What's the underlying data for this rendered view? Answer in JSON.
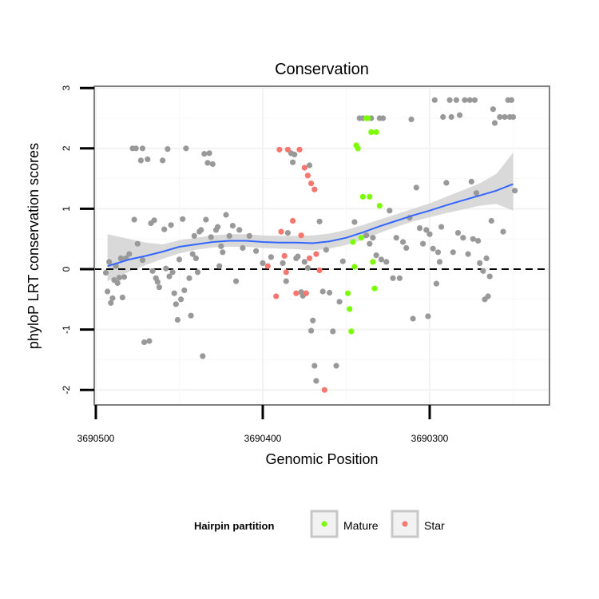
{
  "chart_data": {
    "type": "scatter",
    "title": "Conservation",
    "xlabel": "Genomic Position",
    "ylabel": "phyloP LRT conservation scores",
    "xlim": [
      3690500,
      3690227
    ],
    "x_reversed": true,
    "ylim": [
      -2.25,
      3.05
    ],
    "x_ticks": [
      3690500,
      3690400,
      3690300
    ],
    "x_tick_labels": [
      "3690500",
      "3690400",
      "3690300"
    ],
    "y_ticks": [
      -2,
      -1,
      0,
      1,
      2,
      3
    ],
    "y_tick_labels": [
      "-2",
      "-1",
      "0",
      "1",
      "2",
      "3"
    ],
    "reference_line": {
      "y": 0,
      "style": "dashed",
      "color": "#000000"
    },
    "legend": {
      "title": "Hairpin partition",
      "position": "bottom",
      "entries": [
        {
          "label": "Mature",
          "color": "#7cfc00"
        },
        {
          "label": "Star",
          "color": "#f8766d"
        }
      ]
    },
    "colors": {
      "other": "#999999",
      "Mature": "#7cfc00",
      "Star": "#f8766d",
      "smooth": "#3366ff",
      "ribbon": "#cccccc"
    },
    "series": [
      {
        "name": "Other",
        "points": [
          [
            3690494,
            -0.06
          ],
          [
            3690493,
            -0.37
          ],
          [
            3690492,
            0.12
          ],
          [
            3690491,
            -0.56
          ],
          [
            3690490,
            -0.48
          ],
          [
            3690489,
            -0.18
          ],
          [
            3690488,
            0.05
          ],
          [
            3690487,
            -0.23
          ],
          [
            3690486,
            -0.14
          ],
          [
            3690485,
            0.18
          ],
          [
            3690484,
            -0.47
          ],
          [
            3690483,
            -0.13
          ],
          [
            3690482,
            0.18
          ],
          [
            3690480,
            0.25
          ],
          [
            3690478,
            2.0
          ],
          [
            3690477,
            0.82
          ],
          [
            3690476,
            2.0
          ],
          [
            3690475,
            0.42
          ],
          [
            3690473,
            1.8
          ],
          [
            3690472,
            0.15
          ],
          [
            3690472,
            2.0
          ],
          [
            3690471,
            -1.21
          ],
          [
            3690469,
            1.82
          ],
          [
            3690468,
            -1.19
          ],
          [
            3690467,
            0.76
          ],
          [
            3690466,
            -0.03
          ],
          [
            3690465,
            0.81
          ],
          [
            3690464,
            -0.15
          ],
          [
            3690463,
            -0.21
          ],
          [
            3690462,
            -0.3
          ],
          [
            3690460,
            1.8
          ],
          [
            3690459,
            0.66
          ],
          [
            3690458,
            0.01
          ],
          [
            3690457,
            1.99
          ],
          [
            3690456,
            -0.12
          ],
          [
            3690455,
            0.73
          ],
          [
            3690454,
            -0.05
          ],
          [
            3690453,
            -0.4
          ],
          [
            3690452,
            -0.58
          ],
          [
            3690451,
            -0.84
          ],
          [
            3690450,
            0.16
          ],
          [
            3690449,
            -0.5
          ],
          [
            3690448,
            0.83
          ],
          [
            3690447,
            -0.35
          ],
          [
            3690446,
            2.0
          ],
          [
            3690444,
            -0.15
          ],
          [
            3690443,
            -0.77
          ],
          [
            3690442,
            0.25
          ],
          [
            3690441,
            0.55
          ],
          [
            3690440,
            0.18
          ],
          [
            3690439,
            -0.05
          ],
          [
            3690438,
            0.62
          ],
          [
            3690437,
            0.65
          ],
          [
            3690436,
            -1.44
          ],
          [
            3690435,
            1.91
          ],
          [
            3690434,
            0.82
          ],
          [
            3690433,
            1.76
          ],
          [
            3690432,
            1.92
          ],
          [
            3690431,
            0.53
          ],
          [
            3690430,
            1.74
          ],
          [
            3690428,
            0.65
          ],
          [
            3690427,
            0.7
          ],
          [
            3690426,
            0.05
          ],
          [
            3690425,
            0.38
          ],
          [
            3690424,
            0.28
          ],
          [
            3690422,
            0.9
          ],
          [
            3690420,
            0.55
          ],
          [
            3690418,
            0.72
          ],
          [
            3690416,
            -0.2
          ],
          [
            3690414,
            0.65
          ],
          [
            3690412,
            0.35
          ],
          [
            3690408,
            0.55
          ],
          [
            3690404,
            0.3
          ],
          [
            3690400,
            0.1
          ],
          [
            3690395,
            0.2
          ],
          [
            3690388,
            0.1
          ],
          [
            3690386,
            -0.2
          ],
          [
            3690385,
            0.6
          ],
          [
            3690383,
            1.92
          ],
          [
            3690382,
            1.77
          ],
          [
            3690381,
            1.9
          ],
          [
            3690380,
            0.18
          ],
          [
            3690379,
            0.21
          ],
          [
            3690377,
            -0.38
          ],
          [
            3690376,
            -0.44
          ],
          [
            3690375,
            0.12
          ],
          [
            3690373,
            0.02
          ],
          [
            3690372,
            1.72
          ],
          [
            3690371,
            -1.02
          ],
          [
            3690370,
            -0.85
          ],
          [
            3690369,
            -1.6
          ],
          [
            3690368,
            -1.85
          ],
          [
            3690366,
            0.79
          ],
          [
            3690364,
            -0.37
          ],
          [
            3690362,
            0.32
          ],
          [
            3690360,
            -0.39
          ],
          [
            3690358,
            -1.03
          ],
          [
            3690356,
            -1.6
          ],
          [
            3690354,
            -0.54
          ],
          [
            3690352,
            0.13
          ],
          [
            3690345,
            0.78
          ],
          [
            3690342,
            2.5
          ],
          [
            3690340,
            2.5
          ],
          [
            3690338,
            0.56
          ],
          [
            3690336,
            0.42
          ],
          [
            3690335,
            2.5
          ],
          [
            3690334,
            0.52
          ],
          [
            3690332,
            0.23
          ],
          [
            3690330,
            2.5
          ],
          [
            3690329,
            0.16
          ],
          [
            3690328,
            2.5
          ],
          [
            3690326,
            0.12
          ],
          [
            3690324,
            0.97
          ],
          [
            3690322,
            -0.15
          ],
          [
            3690320,
            0.52
          ],
          [
            3690318,
            -0.15
          ],
          [
            3690316,
            0.45
          ],
          [
            3690314,
            0.35
          ],
          [
            3690312,
            0.85
          ],
          [
            3690311,
            2.48
          ],
          [
            3690310,
            -0.82
          ],
          [
            3690308,
            1.35
          ],
          [
            3690306,
            0.68
          ],
          [
            3690304,
            0.42
          ],
          [
            3690302,
            0.65
          ],
          [
            3690301,
            -0.78
          ],
          [
            3690300,
            0.58
          ],
          [
            3690298,
            0.34
          ],
          [
            3690297,
            2.8
          ],
          [
            3690296,
            -0.24
          ],
          [
            3690295,
            0.28
          ],
          [
            3690294,
            0.12
          ],
          [
            3690293,
            0.7
          ],
          [
            3690292,
            2.52
          ],
          [
            3690290,
            1.43
          ],
          [
            3690288,
            2.8
          ],
          [
            3690287,
            2.52
          ],
          [
            3690286,
            0.28
          ],
          [
            3690284,
            2.8
          ],
          [
            3690283,
            0.6
          ],
          [
            3690282,
            2.55
          ],
          [
            3690280,
            0.52
          ],
          [
            3690279,
            2.8
          ],
          [
            3690277,
            0.25
          ],
          [
            3690276,
            2.8
          ],
          [
            3690275,
            1.45
          ],
          [
            3690274,
            0.5
          ],
          [
            3690273,
            2.8
          ],
          [
            3690272,
            1.26
          ],
          [
            3690271,
            0.47
          ],
          [
            3690270,
            0.1
          ],
          [
            3690268,
            -0.03
          ],
          [
            3690267,
            -0.5
          ],
          [
            3690266,
            0.18
          ],
          [
            3690265,
            -0.45
          ],
          [
            3690264,
            -0.12
          ],
          [
            3690263,
            0.8
          ],
          [
            3690262,
            2.65
          ],
          [
            3690261,
            2.42
          ],
          [
            3690258,
            2.52
          ],
          [
            3690256,
            0.62
          ],
          [
            3690255,
            2.52
          ],
          [
            3690253,
            2.8
          ],
          [
            3690252,
            2.52
          ],
          [
            3690251,
            2.8
          ],
          [
            3690250,
            2.52
          ],
          [
            3690249,
            1.3
          ]
        ]
      },
      {
        "name": "Mature",
        "points": [
          [
            3690349,
            -0.4
          ],
          [
            3690348,
            -0.66
          ],
          [
            3690347,
            -1.03
          ],
          [
            3690346,
            0.45
          ],
          [
            3690345,
            0.04
          ],
          [
            3690344,
            2.05
          ],
          [
            3690343,
            2.0
          ],
          [
            3690341,
            0.52
          ],
          [
            3690340,
            1.2
          ],
          [
            3690338,
            2.5
          ],
          [
            3690337,
            2.5
          ],
          [
            3690336,
            1.2
          ],
          [
            3690335,
            2.27
          ],
          [
            3690334,
            0.12
          ],
          [
            3690333,
            -0.32
          ],
          [
            3690332,
            2.27
          ],
          [
            3690330,
            1.05
          ]
        ]
      },
      {
        "name": "Star",
        "points": [
          [
            3690397,
            0.05
          ],
          [
            3690392,
            -0.45
          ],
          [
            3690390,
            1.98
          ],
          [
            3690389,
            0.62
          ],
          [
            3690387,
            0.22
          ],
          [
            3690386,
            -0.05
          ],
          [
            3690385,
            1.98
          ],
          [
            3690382,
            0.8
          ],
          [
            3690380,
            -0.4
          ],
          [
            3690378,
            1.98
          ],
          [
            3690377,
            0.56
          ],
          [
            3690375,
            1.68
          ],
          [
            3690374,
            -0.4
          ],
          [
            3690373,
            1.55
          ],
          [
            3690372,
            0.18
          ],
          [
            3690371,
            1.42
          ],
          [
            3690369,
            1.32
          ],
          [
            3690368,
            0.25
          ],
          [
            3690366,
            -0.02
          ],
          [
            3690363,
            -2.0
          ]
        ]
      }
    ],
    "smooth": {
      "method": "loess",
      "x": [
        3690493,
        3690480,
        3690470,
        3690460,
        3690450,
        3690440,
        3690430,
        3690420,
        3690410,
        3690400,
        3690390,
        3690380,
        3690370,
        3690360,
        3690350,
        3690340,
        3690330,
        3690320,
        3690310,
        3690300,
        3690290,
        3690280,
        3690270,
        3690260,
        3690250
      ],
      "y": [
        0.05,
        0.16,
        0.22,
        0.29,
        0.37,
        0.41,
        0.45,
        0.47,
        0.47,
        0.45,
        0.44,
        0.44,
        0.43,
        0.46,
        0.52,
        0.61,
        0.71,
        0.8,
        0.89,
        0.97,
        1.06,
        1.14,
        1.22,
        1.3,
        1.41
      ],
      "lower": [
        -0.2,
        -0.04,
        0.07,
        0.17,
        0.26,
        0.32,
        0.36,
        0.37,
        0.37,
        0.35,
        0.34,
        0.33,
        0.31,
        0.34,
        0.4,
        0.49,
        0.6,
        0.7,
        0.79,
        0.86,
        0.93,
        0.99,
        1.05,
        1.08,
        0.97
      ],
      "upper": [
        0.58,
        0.5,
        0.44,
        0.41,
        0.48,
        0.52,
        0.56,
        0.58,
        0.58,
        0.56,
        0.55,
        0.55,
        0.56,
        0.59,
        0.65,
        0.73,
        0.82,
        0.91,
        1.0,
        1.09,
        1.2,
        1.31,
        1.42,
        1.58,
        1.93
      ]
    }
  }
}
